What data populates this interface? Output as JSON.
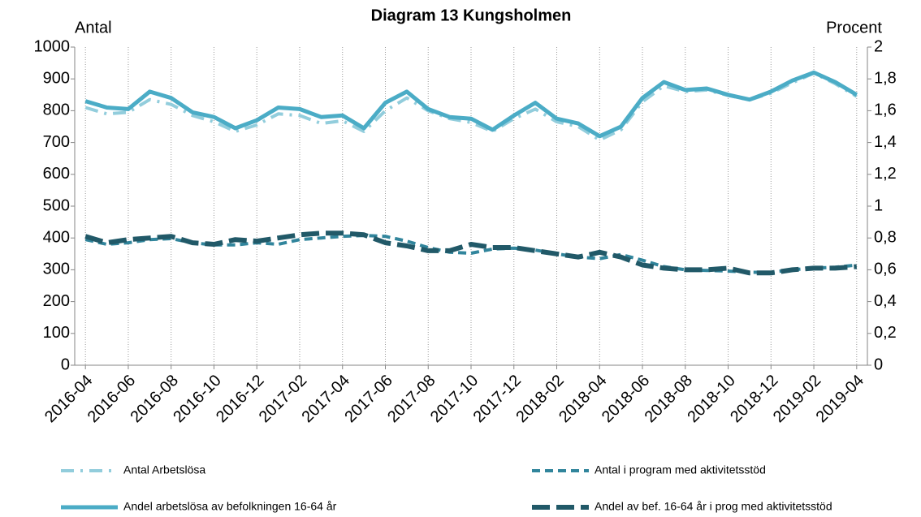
{
  "chart_data": {
    "type": "line",
    "title": "Diagram 13 Kungsholmen",
    "y_label": "Antal",
    "y2_label": "Procent",
    "categories": [
      "2016-04",
      null,
      "2016-06",
      null,
      "2016-08",
      null,
      "2016-10",
      null,
      "2016-12",
      null,
      "2017-02",
      null,
      "2017-04",
      null,
      "2017-06",
      null,
      "2017-08",
      null,
      "2017-10",
      null,
      "2017-12",
      null,
      "2018-02",
      null,
      "2018-04",
      null,
      "2018-06",
      null,
      "2018-08",
      null,
      "2018-10",
      null,
      "2018-12",
      null,
      "2019-02",
      null,
      "2019-04"
    ],
    "ylim": [
      0,
      1000
    ],
    "yticks": [
      0,
      100,
      200,
      300,
      400,
      500,
      600,
      700,
      800,
      900,
      1000
    ],
    "y2lim": [
      0,
      2
    ],
    "y2ticks": [
      0,
      {
        "value": 0.2,
        "label": "0,2"
      },
      {
        "value": 0.4,
        "label": "0,4"
      },
      {
        "value": 0.6,
        "label": "0,6"
      },
      {
        "value": 0.8,
        "label": "0,8"
      },
      1,
      {
        "value": 1.2,
        "label": "1,2"
      },
      {
        "value": 1.4,
        "label": "1,4"
      },
      {
        "value": 1.6,
        "label": "1,6"
      },
      {
        "value": 1.8,
        "label": "1,8"
      },
      2
    ],
    "grid": "x",
    "series": [
      {
        "name": "Antal Arbetslösa",
        "color": "#92cddc",
        "line_style": "dashdot",
        "axis": "y",
        "values": [
          810,
          790,
          795,
          835,
          820,
          785,
          765,
          735,
          755,
          790,
          785,
          760,
          768,
          735,
          800,
          840,
          800,
          775,
          763,
          735,
          775,
          805,
          765,
          750,
          708,
          740,
          828,
          878,
          860,
          865,
          848,
          834,
          855,
          888,
          918,
          885,
          845
        ]
      },
      {
        "name": "Antal i program med aktivitetsstöd",
        "color": "#31859c",
        "line_style": "dashed",
        "axis": "y",
        "values": [
          395,
          380,
          385,
          395,
          398,
          385,
          378,
          378,
          385,
          380,
          395,
          400,
          405,
          408,
          405,
          390,
          370,
          355,
          352,
          365,
          368,
          362,
          350,
          340,
          335,
          348,
          330,
          310,
          300,
          298,
          296,
          292,
          292,
          300,
          305,
          308,
          315
        ]
      },
      {
        "name": "Andel arbetslösa av befolkningen 16-64 år",
        "color": "#4bacc6",
        "line_style": "solid",
        "axis": "y2",
        "values": [
          1.66,
          1.62,
          1.61,
          1.72,
          1.68,
          1.59,
          1.56,
          1.49,
          1.54,
          1.62,
          1.61,
          1.56,
          1.57,
          1.49,
          1.65,
          1.72,
          1.61,
          1.56,
          1.55,
          1.48,
          1.57,
          1.65,
          1.55,
          1.52,
          1.44,
          1.5,
          1.68,
          1.78,
          1.73,
          1.74,
          1.7,
          1.67,
          1.72,
          1.79,
          1.84,
          1.78,
          1.7
        ]
      },
      {
        "name": "Andel av bef. 16-64 år i prog med aktivitetsstöd",
        "color": "#215968",
        "line_style": "longdash",
        "axis": "y2",
        "values": [
          0.81,
          0.77,
          0.79,
          0.8,
          0.81,
          0.77,
          0.76,
          0.79,
          0.78,
          0.8,
          0.82,
          0.83,
          0.83,
          0.82,
          0.77,
          0.75,
          0.72,
          0.72,
          0.76,
          0.74,
          0.74,
          0.72,
          0.7,
          0.68,
          0.71,
          0.68,
          0.63,
          0.61,
          0.6,
          0.6,
          0.61,
          0.58,
          0.58,
          0.6,
          0.61,
          0.61,
          0.62
        ]
      }
    ]
  }
}
